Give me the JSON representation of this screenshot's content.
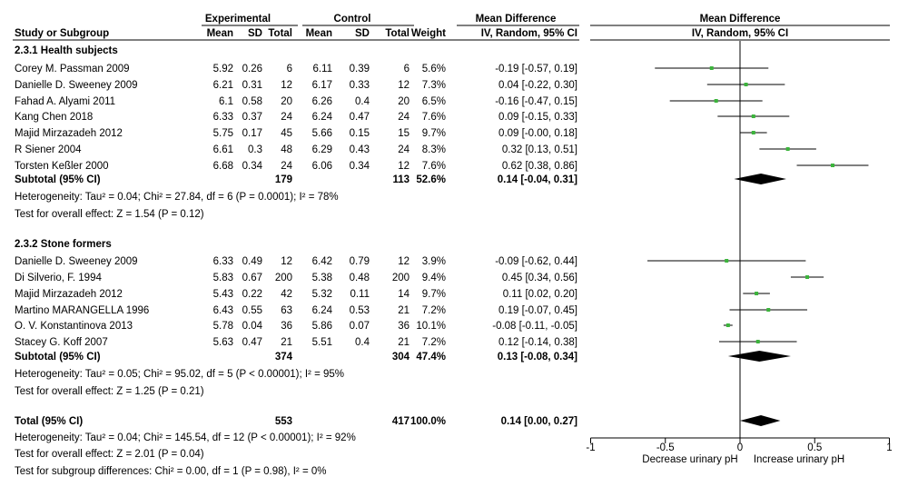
{
  "header": {
    "group_experimental": "Experimental",
    "group_control": "Control",
    "mean_difference": "Mean Difference",
    "plot_title": "Mean Difference",
    "study_col": "Study or Subgroup",
    "mean1": "Mean",
    "sd1": "SD",
    "total1": "Total",
    "mean2": "Mean",
    "sd2": "SD",
    "total2": "Total",
    "weight": "Weight",
    "method": "IV, Random, 95% CI",
    "plot_method": "IV, Random, 95% CI"
  },
  "axis": {
    "ticks": [
      {
        "v": -1,
        "label": "-1"
      },
      {
        "v": -0.5,
        "label": "-0.5"
      },
      {
        "v": 0,
        "label": "0"
      },
      {
        "v": 0.5,
        "label": "0.5"
      },
      {
        "v": 1,
        "label": "1"
      }
    ],
    "left_label": "Decrease urinary pH",
    "right_label": "Increase urinary pH"
  },
  "chart_data": {
    "type": "forest",
    "xlim": [
      -1,
      1
    ],
    "reference_line": 0,
    "subgroups": [
      {
        "title": "2.3.1 Health subjects",
        "studies": [
          {
            "name": "Corey M. Passman  2009",
            "mean1": "5.92",
            "sd1": "0.26",
            "total1": "6",
            "mean2": "6.11",
            "sd2": "0.39",
            "total2": "6",
            "weight": "5.6%",
            "ci_text": "-0.19 [-0.57, 0.19]",
            "md": -0.19,
            "lo": -0.57,
            "hi": 0.19
          },
          {
            "name": "Danielle D. Sweeney  2009",
            "mean1": "6.21",
            "sd1": "0.31",
            "total1": "12",
            "mean2": "6.17",
            "sd2": "0.33",
            "total2": "12",
            "weight": "7.3%",
            "ci_text": "0.04 [-0.22, 0.30]",
            "md": 0.04,
            "lo": -0.22,
            "hi": 0.3
          },
          {
            "name": "Fahad A. Alyami  2011",
            "mean1": "6.1",
            "sd1": "0.58",
            "total1": "20",
            "mean2": "6.26",
            "sd2": "0.4",
            "total2": "20",
            "weight": "6.5%",
            "ci_text": "-0.16 [-0.47, 0.15]",
            "md": -0.16,
            "lo": -0.47,
            "hi": 0.15
          },
          {
            "name": "Kang Chen  2018",
            "mean1": "6.33",
            "sd1": "0.37",
            "total1": "24",
            "mean2": "6.24",
            "sd2": "0.47",
            "total2": "24",
            "weight": "7.6%",
            "ci_text": "0.09 [-0.15, 0.33]",
            "md": 0.09,
            "lo": -0.15,
            "hi": 0.33
          },
          {
            "name": "Majid Mirzazadeh 2012",
            "mean1": "5.75",
            "sd1": "0.17",
            "total1": "45",
            "mean2": "5.66",
            "sd2": "0.15",
            "total2": "15",
            "weight": "9.7%",
            "ci_text": "0.09 [-0.00, 0.18]",
            "md": 0.09,
            "lo": 0.0,
            "hi": 0.18
          },
          {
            "name": "R Siener  2004",
            "mean1": "6.61",
            "sd1": "0.3",
            "total1": "48",
            "mean2": "6.29",
            "sd2": "0.43",
            "total2": "24",
            "weight": "8.3%",
            "ci_text": "0.32 [0.13, 0.51]",
            "md": 0.32,
            "lo": 0.13,
            "hi": 0.51
          },
          {
            "name": "Torsten Keßler  2000",
            "mean1": "6.68",
            "sd1": "0.34",
            "total1": "24",
            "mean2": "6.06",
            "sd2": "0.34",
            "total2": "12",
            "weight": "7.6%",
            "ci_text": "0.62 [0.38, 0.86]",
            "md": 0.62,
            "lo": 0.38,
            "hi": 0.86
          }
        ],
        "subtotal": {
          "label": "Subtotal (95% CI)",
          "total1": "179",
          "total2": "113",
          "weight": "52.6%",
          "ci_text": "0.14 [-0.04, 0.31]",
          "md": 0.14,
          "lo": -0.04,
          "hi": 0.31
        },
        "heterogeneity": "Heterogeneity: Tau² = 0.04; Chi² = 27.84, df = 6 (P = 0.0001); I² = 78%",
        "overall_effect": "Test for overall effect: Z = 1.54 (P = 0.12)"
      },
      {
        "title": "2.3.2 Stone formers",
        "studies": [
          {
            "name": "Danielle D. Sweeney  2009",
            "mean1": "6.33",
            "sd1": "0.49",
            "total1": "12",
            "mean2": "6.42",
            "sd2": "0.79",
            "total2": "12",
            "weight": "3.9%",
            "ci_text": "-0.09 [-0.62, 0.44]",
            "md": -0.09,
            "lo": -0.62,
            "hi": 0.44
          },
          {
            "name": "Di Silverio, F. 1994",
            "mean1": "5.83",
            "sd1": "0.67",
            "total1": "200",
            "mean2": "5.38",
            "sd2": "0.48",
            "total2": "200",
            "weight": "9.4%",
            "ci_text": "0.45 [0.34, 0.56]",
            "md": 0.45,
            "lo": 0.34,
            "hi": 0.56
          },
          {
            "name": "Majid Mirzazadeh 2012",
            "mean1": "5.43",
            "sd1": "0.22",
            "total1": "42",
            "mean2": "5.32",
            "sd2": "0.11",
            "total2": "14",
            "weight": "9.7%",
            "ci_text": "0.11 [0.02, 0.20]",
            "md": 0.11,
            "lo": 0.02,
            "hi": 0.2
          },
          {
            "name": "Martino MARANGELLA 1996",
            "mean1": "6.43",
            "sd1": "0.55",
            "total1": "63",
            "mean2": "6.24",
            "sd2": "0.53",
            "total2": "21",
            "weight": "7.2%",
            "ci_text": "0.19 [-0.07, 0.45]",
            "md": 0.19,
            "lo": -0.07,
            "hi": 0.45
          },
          {
            "name": "O. V. Konstantinova  2013",
            "mean1": "5.78",
            "sd1": "0.04",
            "total1": "36",
            "mean2": "5.86",
            "sd2": "0.07",
            "total2": "36",
            "weight": "10.1%",
            "ci_text": "-0.08 [-0.11, -0.05]",
            "md": -0.08,
            "lo": -0.11,
            "hi": -0.05
          },
          {
            "name": "Stacey G. Koff  2007",
            "mean1": "5.63",
            "sd1": "0.47",
            "total1": "21",
            "mean2": "5.51",
            "sd2": "0.4",
            "total2": "21",
            "weight": "7.2%",
            "ci_text": "0.12 [-0.14, 0.38]",
            "md": 0.12,
            "lo": -0.14,
            "hi": 0.38
          }
        ],
        "subtotal": {
          "label": "Subtotal (95% CI)",
          "total1": "374",
          "total2": "304",
          "weight": "47.4%",
          "ci_text": "0.13 [-0.08, 0.34]",
          "md": 0.13,
          "lo": -0.08,
          "hi": 0.34
        },
        "heterogeneity": "Heterogeneity: Tau² = 0.05; Chi² = 95.02, df = 5 (P < 0.00001); I² = 95%",
        "overall_effect": "Test for overall effect: Z = 1.25 (P = 0.21)"
      }
    ],
    "total": {
      "label": "Total (95% CI)",
      "total1": "553",
      "total2": "417",
      "weight": "100.0%",
      "ci_text": "0.14 [0.00, 0.27]",
      "md": 0.14,
      "lo": 0.0,
      "hi": 0.27
    },
    "footer": [
      "Heterogeneity: Tau² = 0.04; Chi² = 145.54, df = 12 (P < 0.00001); I² = 92%",
      "Test for overall effect: Z = 2.01 (P = 0.04)",
      "Test for subgroup differences: Chi² = 0.00, df = 1 (P = 0.98), I² = 0%"
    ],
    "colors": {
      "marker": "#3cb43c",
      "diamond": "#000000",
      "line": "#000000"
    }
  }
}
